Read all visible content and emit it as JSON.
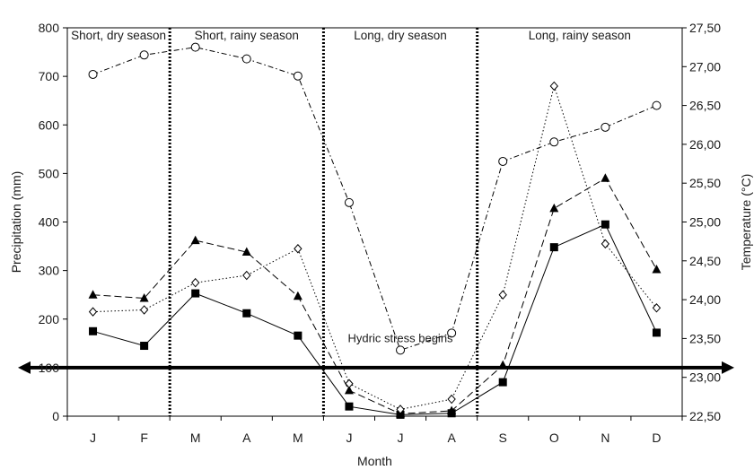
{
  "chart_data": {
    "type": "line",
    "categories": [
      "J",
      "F",
      "M",
      "A",
      "M",
      "J",
      "J",
      "A",
      "S",
      "O",
      "N",
      "D"
    ],
    "xlabel": "Month",
    "ylabel": "Precipitation (mm)",
    "ylabel_right": "Temperature (°C)",
    "ylim": [
      0,
      800
    ],
    "yticks": [
      0,
      100,
      200,
      300,
      400,
      500,
      600,
      700,
      800
    ],
    "ylim_right": [
      22.5,
      27.5
    ],
    "yticks_right": [
      "22,50",
      "23,00",
      "23,50",
      "24,00",
      "24,50",
      "25,00",
      "25,50",
      "26,00",
      "26,50",
      "27,00",
      "27,50"
    ],
    "grid": false,
    "series": [
      {
        "marker": "filled-square",
        "line": "solid",
        "axis": "left",
        "values": [
          175,
          145,
          253,
          212,
          166,
          20,
          3,
          6,
          70,
          348,
          395,
          172
        ]
      },
      {
        "marker": "filled-triangle",
        "line": "dashed",
        "axis": "left",
        "values": [
          250,
          243,
          362,
          338,
          247,
          53,
          5,
          11,
          105,
          428,
          490,
          302
        ]
      },
      {
        "marker": "open-diamond",
        "line": "dotted",
        "axis": "left",
        "values": [
          215,
          219,
          275,
          290,
          345,
          67,
          14,
          35,
          250,
          680,
          355,
          223
        ]
      },
      {
        "marker": "open-circle",
        "line": "dash-dot",
        "axis": "right",
        "values": [
          26.9,
          27.15,
          27.25,
          27.1,
          26.88,
          25.25,
          23.35,
          23.57,
          25.78,
          26.03,
          26.22,
          26.5
        ]
      }
    ],
    "seasons": [
      "Short, dry season",
      "Short, rainy season",
      "Long, dry season",
      "Long, rainy season"
    ],
    "season_boundaries": [
      2,
      5,
      8
    ],
    "threshold": {
      "value": 100,
      "label": "Hydric stress begins"
    }
  }
}
